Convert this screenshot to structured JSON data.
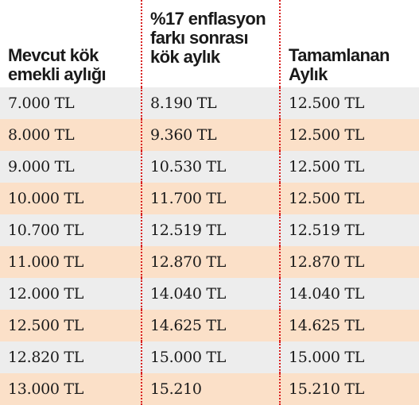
{
  "table": {
    "headers": [
      "Mevcut kök emekli aylığı",
      "%17 enflasyon farkı sonrası kök aylık",
      "Tamamlanan Aylık"
    ],
    "rows": [
      [
        "7.000 TL",
        "8.190 TL",
        "12.500 TL"
      ],
      [
        "8.000 TL",
        "9.360 TL",
        "12.500 TL"
      ],
      [
        "9.000 TL",
        "10.530 TL",
        "12.500 TL"
      ],
      [
        "10.000 TL",
        "11.700 TL",
        "12.500 TL"
      ],
      [
        "10.700 TL",
        "12.519 TL",
        "12.519 TL"
      ],
      [
        "11.000 TL",
        "12.870 TL",
        "12.870 TL"
      ],
      [
        "12.000 TL",
        "14.040 TL",
        "14.040 TL"
      ],
      [
        "12.500 TL",
        "14.625 TL",
        "14.625 TL"
      ],
      [
        "12.820 TL",
        "15.000 TL",
        "15.000 TL"
      ],
      [
        "13.000 TL",
        "15.210",
        "15.210 TL"
      ]
    ]
  },
  "colors": {
    "row_gray": "#ededed",
    "row_peach": "#fbe0c8",
    "separator": "#d92020",
    "text": "#1a1a1a"
  }
}
